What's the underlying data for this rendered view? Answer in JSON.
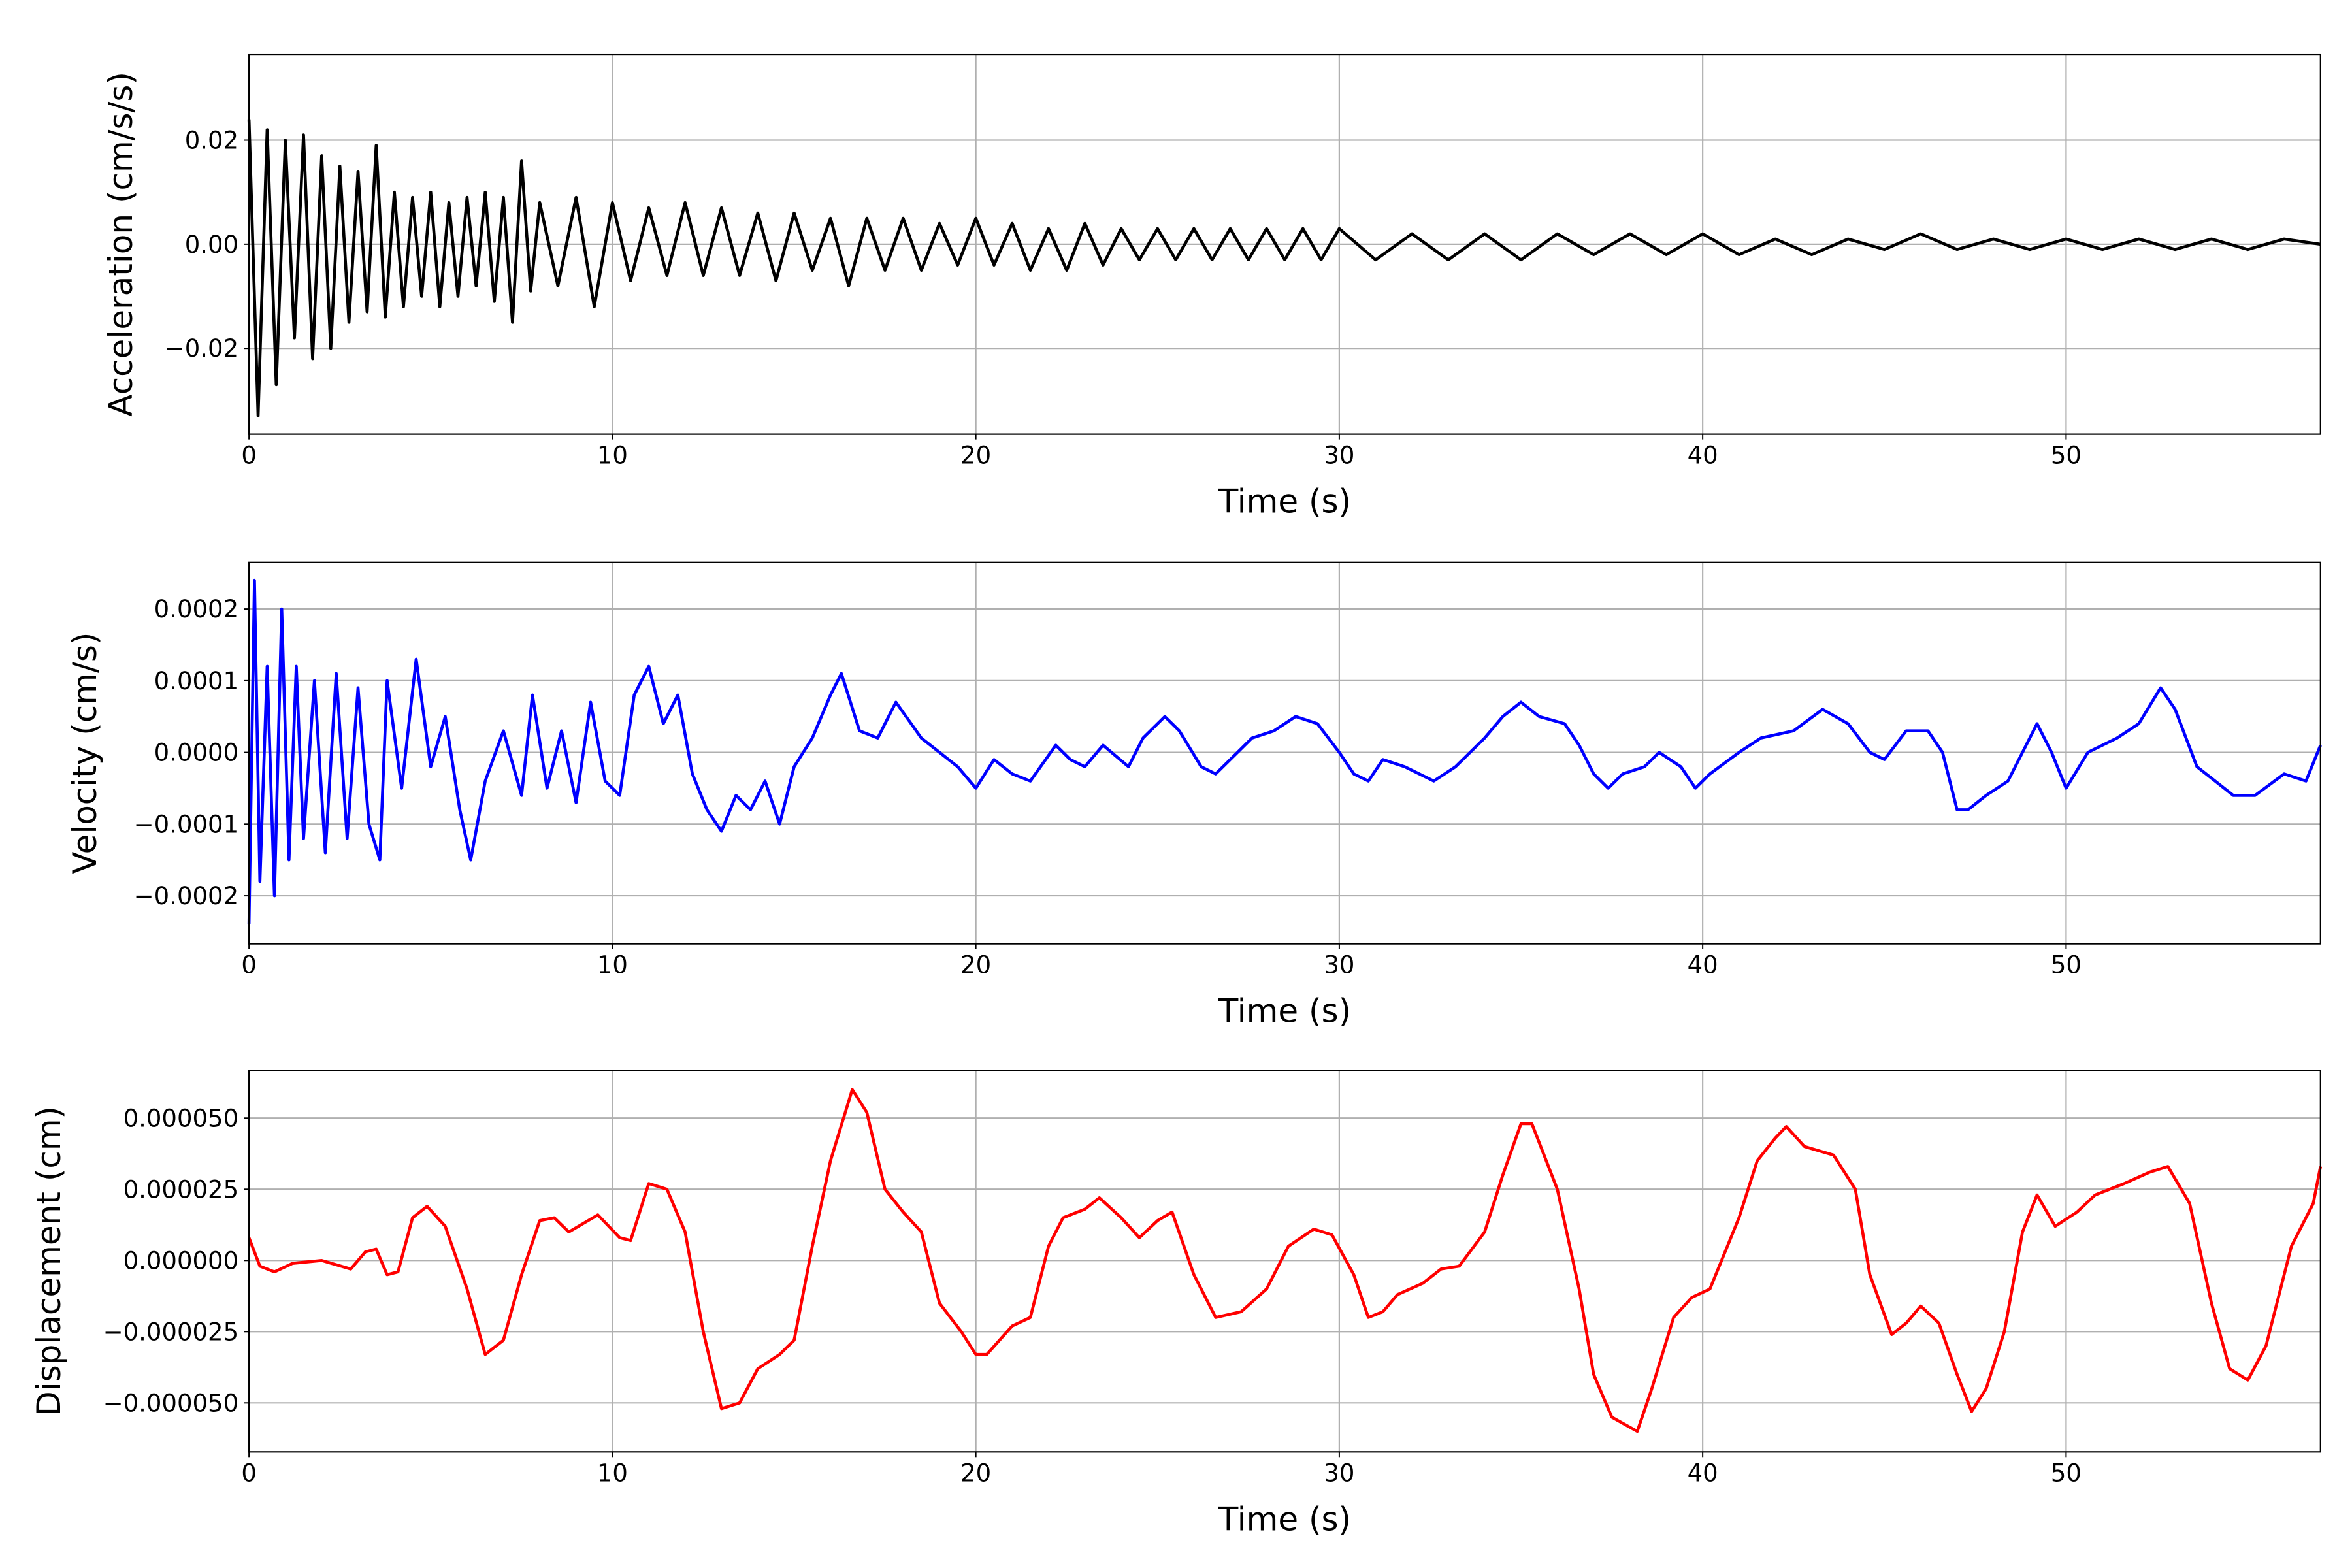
{
  "chart_data": [
    {
      "type": "line",
      "ylabel": "Acceleration (cm/s/s)",
      "xlabel": "Time (s)",
      "color": "#000000",
      "grid": true,
      "xlim": [
        0,
        57
      ],
      "ylim": [
        -0.0365,
        0.0365
      ],
      "xticks": [
        0,
        10,
        20,
        30,
        40,
        50
      ],
      "yticks": [
        {
          "value": -0.02,
          "label": "−0.02"
        },
        {
          "value": 0,
          "label": "0.00"
        },
        {
          "value": 0.02,
          "label": "0.02"
        }
      ],
      "x": [
        0,
        0.25,
        0.5,
        0.75,
        1,
        1.25,
        1.5,
        1.75,
        2,
        2.25,
        2.5,
        2.75,
        3,
        3.25,
        3.5,
        3.75,
        4,
        4.25,
        4.5,
        4.75,
        5,
        5.25,
        5.5,
        5.75,
        6,
        6.25,
        6.5,
        6.75,
        7,
        7.25,
        7.5,
        7.75,
        8,
        8.5,
        9,
        9.5,
        10,
        10.5,
        11,
        11.5,
        12,
        12.5,
        13,
        13.5,
        14,
        14.5,
        15,
        15.5,
        16,
        16.5,
        17,
        17.5,
        18,
        18.5,
        19,
        19.5,
        20,
        20.5,
        21,
        21.5,
        22,
        22.5,
        23,
        23.5,
        24,
        24.5,
        25,
        25.5,
        26,
        26.5,
        27,
        27.5,
        28,
        28.5,
        29,
        29.5,
        30,
        31,
        32,
        33,
        34,
        35,
        36,
        37,
        38,
        39,
        40,
        41,
        42,
        43,
        44,
        45,
        46,
        47,
        48,
        49,
        50,
        51,
        52,
        53,
        54,
        55,
        56,
        57
      ],
      "values": [
        0.024,
        -0.033,
        0.022,
        -0.027,
        0.02,
        -0.018,
        0.021,
        -0.022,
        0.017,
        -0.02,
        0.015,
        -0.015,
        0.014,
        -0.013,
        0.019,
        -0.014,
        0.01,
        -0.012,
        0.009,
        -0.01,
        0.01,
        -0.012,
        0.008,
        -0.01,
        0.009,
        -0.008,
        0.01,
        -0.011,
        0.009,
        -0.015,
        0.016,
        -0.009,
        0.008,
        -0.008,
        0.009,
        -0.012,
        0.008,
        -0.007,
        0.007,
        -0.006,
        0.008,
        -0.006,
        0.007,
        -0.006,
        0.006,
        -0.007,
        0.006,
        -0.005,
        0.005,
        -0.008,
        0.005,
        -0.005,
        0.005,
        -0.005,
        0.004,
        -0.004,
        0.005,
        -0.004,
        0.004,
        -0.005,
        0.003,
        -0.005,
        0.004,
        -0.004,
        0.003,
        -0.003,
        0.003,
        -0.003,
        0.003,
        -0.003,
        0.003,
        -0.003,
        0.003,
        -0.003,
        0.003,
        -0.003,
        0.003,
        -0.003,
        0.002,
        -0.003,
        0.002,
        -0.003,
        0.002,
        -0.002,
        0.002,
        -0.002,
        0.002,
        -0.002,
        0.001,
        -0.002,
        0.001,
        -0.001,
        0.002,
        -0.001,
        0.001,
        -0.001,
        0.001,
        -0.001,
        0.001,
        -0.001,
        0.001,
        -0.001,
        0.001,
        0
      ]
    },
    {
      "type": "line",
      "ylabel": "Velocity (cm/s)",
      "xlabel": "Time (s)",
      "color": "#0000ff",
      "grid": true,
      "xlim": [
        0,
        57
      ],
      "ylim": [
        -0.000267,
        0.000265
      ],
      "xticks": [
        0,
        10,
        20,
        30,
        40,
        50
      ],
      "yticks": [
        {
          "value": -0.0002,
          "label": "−0.0002"
        },
        {
          "value": -0.0001,
          "label": "−0.0001"
        },
        {
          "value": 0,
          "label": "0.0000"
        },
        {
          "value": 0.0001,
          "label": "0.0001"
        },
        {
          "value": 0.0002,
          "label": "0.0002"
        }
      ],
      "x": [
        0,
        0.15,
        0.3,
        0.5,
        0.7,
        0.9,
        1.1,
        1.3,
        1.5,
        1.8,
        2.1,
        2.4,
        2.7,
        3,
        3.3,
        3.6,
        3.8,
        4.2,
        4.6,
        5,
        5.4,
        5.8,
        6.1,
        6.5,
        7,
        7.5,
        7.8,
        8.2,
        8.6,
        9,
        9.4,
        9.8,
        10.2,
        10.6,
        11,
        11.4,
        11.8,
        12.2,
        12.6,
        13,
        13.4,
        13.8,
        14.2,
        14.6,
        15,
        15.5,
        16,
        16.3,
        16.8,
        17.3,
        17.8,
        18.5,
        19,
        19.5,
        20,
        20.5,
        21,
        21.5,
        22.2,
        22.6,
        23,
        23.5,
        24.2,
        24.6,
        25.2,
        25.6,
        26.2,
        26.6,
        27.2,
        27.6,
        28.2,
        28.8,
        29.4,
        30,
        30.4,
        30.8,
        31.2,
        31.8,
        32.6,
        33.2,
        34,
        34.5,
        35,
        35.5,
        36.2,
        36.6,
        37,
        37.4,
        37.8,
        38.4,
        38.8,
        39.4,
        39.8,
        40.2,
        41,
        41.6,
        42.5,
        43.3,
        44,
        44.6,
        45,
        45.6,
        46.2,
        46.6,
        47,
        47.3,
        47.8,
        48.4,
        49.2,
        49.6,
        50,
        50.6,
        51.4,
        52,
        52.6,
        53,
        53.6,
        54.1,
        54.6,
        55.2,
        56,
        56.6,
        57
      ],
      "values": [
        -0.00024,
        0.00024,
        -0.00018,
        0.00012,
        -0.0002,
        0.0002,
        -0.00015,
        0.00012,
        -0.00012,
        0.0001,
        -0.00014,
        0.00011,
        -0.00012,
        9e-05,
        -0.0001,
        -0.00015,
        0.0001,
        -5e-05,
        0.00013,
        -2e-05,
        5e-05,
        -8e-05,
        -0.00015,
        -4e-05,
        3e-05,
        -6e-05,
        8e-05,
        -5e-05,
        3e-05,
        -7e-05,
        7e-05,
        -4e-05,
        -6e-05,
        8e-05,
        0.00012,
        4e-05,
        8e-05,
        -3e-05,
        -8e-05,
        -0.00011,
        -6e-05,
        -8e-05,
        -4e-05,
        -0.0001,
        -2e-05,
        2e-05,
        8e-05,
        0.00011,
        3e-05,
        2e-05,
        7e-05,
        2e-05,
        0,
        -2e-05,
        -5e-05,
        -1e-05,
        -3e-05,
        -4e-05,
        1e-05,
        -1e-05,
        -2e-05,
        1e-05,
        -2e-05,
        2e-05,
        5e-05,
        3e-05,
        -2e-05,
        -3e-05,
        0,
        2e-05,
        3e-05,
        5e-05,
        4e-05,
        0,
        -3e-05,
        -4e-05,
        -1e-05,
        -2e-05,
        -4e-05,
        -2e-05,
        2e-05,
        5e-05,
        7e-05,
        5e-05,
        4e-05,
        1e-05,
        -3e-05,
        -5e-05,
        -3e-05,
        -2e-05,
        0,
        -2e-05,
        -5e-05,
        -3e-05,
        0,
        2e-05,
        3e-05,
        6e-05,
        4e-05,
        0,
        -1e-05,
        3e-05,
        3e-05,
        0,
        -8e-05,
        -8e-05,
        -6e-05,
        -4e-05,
        4e-05,
        0,
        -5e-05,
        0,
        2e-05,
        4e-05,
        9e-05,
        6e-05,
        -2e-05,
        -4e-05,
        -6e-05,
        -6e-05,
        -3e-05,
        -4e-05,
        1e-05
      ]
    },
    {
      "type": "line",
      "ylabel": "Displacement (cm)",
      "xlabel": "Time (s)",
      "color": "#ff0000",
      "grid": true,
      "xlim": [
        0,
        57
      ],
      "ylim": [
        -6.72e-05,
        6.67e-05
      ],
      "xticks": [
        0,
        10,
        20,
        30,
        40,
        50
      ],
      "yticks": [
        {
          "value": -5e-05,
          "label": "−0.000050"
        },
        {
          "value": -2.5e-05,
          "label": "−0.000025"
        },
        {
          "value": 0,
          "label": "0.000000"
        },
        {
          "value": 2.5e-05,
          "label": "0.000025"
        },
        {
          "value": 5e-05,
          "label": "0.000050"
        }
      ],
      "x": [
        0,
        0.3,
        0.7,
        1.2,
        2,
        2.8,
        3.2,
        3.5,
        3.8,
        4.1,
        4.5,
        4.9,
        5.4,
        6,
        6.5,
        7,
        7.5,
        8,
        8.4,
        8.8,
        9.6,
        10.2,
        10.5,
        11,
        11.5,
        12,
        12.5,
        13,
        13.5,
        14,
        14.6,
        15,
        15.5,
        16,
        16.6,
        17,
        17.5,
        18,
        18.5,
        19,
        19.6,
        20,
        20.3,
        21,
        21.5,
        22,
        22.4,
        23,
        23.4,
        24,
        24.5,
        25,
        25.4,
        26,
        26.6,
        27.3,
        28,
        28.6,
        29.3,
        29.8,
        30.4,
        30.8,
        31.2,
        31.6,
        32.3,
        32.8,
        33.3,
        34,
        34.5,
        35,
        35.3,
        36,
        36.6,
        37,
        37.5,
        38.2,
        38.6,
        39.2,
        39.7,
        40.2,
        41,
        41.5,
        42,
        42.3,
        42.8,
        43.6,
        44.2,
        44.6,
        45.2,
        45.6,
        46,
        46.5,
        47,
        47.4,
        47.8,
        48.3,
        48.8,
        49.2,
        49.7,
        50.3,
        50.8,
        51.6,
        52.3,
        52.8,
        53.4,
        54,
        54.5,
        55,
        55.5,
        56.2,
        56.8,
        57
      ],
      "values": [
        8e-06,
        -2e-06,
        -4e-06,
        -1e-06,
        0,
        -3e-06,
        3e-06,
        4e-06,
        -5e-06,
        -4e-06,
        1.5e-05,
        1.9e-05,
        1.2e-05,
        -1e-05,
        -3.3e-05,
        -2.8e-05,
        -5e-06,
        1.4e-05,
        1.5e-05,
        1e-05,
        1.6e-05,
        8e-06,
        7e-06,
        2.7e-05,
        2.5e-05,
        1e-05,
        -2.5e-05,
        -5.2e-05,
        -5e-05,
        -3.8e-05,
        -3.3e-05,
        -2.8e-05,
        5e-06,
        3.5e-05,
        6e-05,
        5.2e-05,
        2.5e-05,
        1.7e-05,
        1e-05,
        -1.5e-05,
        -2.5e-05,
        -3.3e-05,
        -3.3e-05,
        -2.3e-05,
        -2e-05,
        5e-06,
        1.5e-05,
        1.8e-05,
        2.2e-05,
        1.5e-05,
        8e-06,
        1.4e-05,
        1.7e-05,
        -5e-06,
        -2e-05,
        -1.8e-05,
        -1e-05,
        5e-06,
        1.1e-05,
        9e-06,
        -5e-06,
        -2e-05,
        -1.8e-05,
        -1.2e-05,
        -8e-06,
        -3e-06,
        -2e-06,
        1e-05,
        3e-05,
        4.8e-05,
        4.8e-05,
        2.5e-05,
        -1e-05,
        -4e-05,
        -5.5e-05,
        -6e-05,
        -4.5e-05,
        -2e-05,
        -1.3e-05,
        -1e-05,
        1.5e-05,
        3.5e-05,
        4.3e-05,
        4.7e-05,
        4e-05,
        3.7e-05,
        2.5e-05,
        -5e-06,
        -2.6e-05,
        -2.2e-05,
        -1.6e-05,
        -2.2e-05,
        -4e-05,
        -5.3e-05,
        -4.5e-05,
        -2.5e-05,
        1e-05,
        2.3e-05,
        1.2e-05,
        1.7e-05,
        2.3e-05,
        2.7e-05,
        3.1e-05,
        3.3e-05,
        2e-05,
        -1.5e-05,
        -3.8e-05,
        -4.2e-05,
        -3e-05,
        5e-06,
        2e-05,
        3.3e-05
      ]
    }
  ]
}
